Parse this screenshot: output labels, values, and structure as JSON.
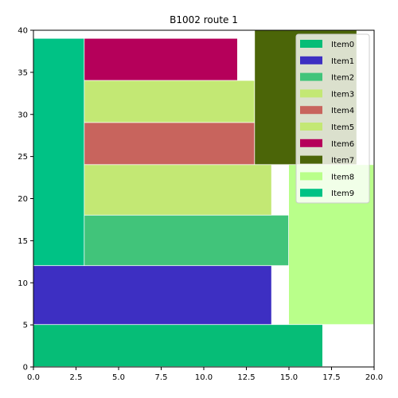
{
  "chart_data": {
    "type": "rectangle-packing",
    "title": "B1002 route 1",
    "xlabel": "",
    "ylabel": "",
    "xlim": [
      0,
      20
    ],
    "ylim": [
      0,
      40
    ],
    "xticks": [
      "0.0",
      "2.5",
      "5.0",
      "7.5",
      "10.0",
      "12.5",
      "15.0",
      "17.5",
      "20.0"
    ],
    "xtick_values": [
      0,
      2.5,
      5,
      7.5,
      10,
      12.5,
      15,
      17.5,
      20
    ],
    "yticks": [
      "0",
      "5",
      "10",
      "15",
      "20",
      "25",
      "30",
      "35",
      "40"
    ],
    "ytick_values": [
      0,
      5,
      10,
      15,
      20,
      25,
      30,
      35,
      40
    ],
    "grid": false,
    "legend_position": "top-right",
    "items": [
      {
        "name": "Item0",
        "color": "#06BD77",
        "x0": 0,
        "x1": 17,
        "y0": 0,
        "y1": 5
      },
      {
        "name": "Item1",
        "color": "#3D2FC2",
        "x0": 0,
        "x1": 14,
        "y0": 5,
        "y1": 12
      },
      {
        "name": "Item2",
        "color": "#41C47A",
        "x0": 3,
        "x1": 15,
        "y0": 12,
        "y1": 18
      },
      {
        "name": "Item3",
        "color": "#C3E874",
        "x0": 3,
        "x1": 14,
        "y0": 18,
        "y1": 24
      },
      {
        "name": "Item4",
        "color": "#C8645D",
        "x0": 3,
        "x1": 13,
        "y0": 24,
        "y1": 29
      },
      {
        "name": "Item5",
        "color": "#C3E874",
        "x0": 3,
        "x1": 13,
        "y0": 29,
        "y1": 34
      },
      {
        "name": "Item6",
        "color": "#B5005A",
        "x0": 3,
        "x1": 12,
        "y0": 34,
        "y1": 39
      },
      {
        "name": "Item7",
        "color": "#4B6508",
        "x0": 13,
        "x1": 19,
        "y0": 24,
        "y1": 40
      },
      {
        "name": "Item8",
        "color": "#B9FF8A",
        "x0": 15,
        "x1": 20,
        "y0": 5,
        "y1": 24
      },
      {
        "name": "Item9",
        "color": "#00C285",
        "x0": 0,
        "x1": 3,
        "y0": 12,
        "y1": 39
      }
    ]
  }
}
